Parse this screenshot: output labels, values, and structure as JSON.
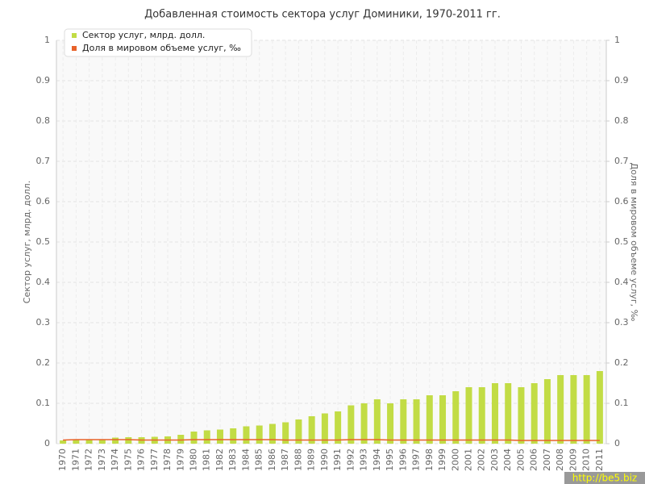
{
  "chart_data": {
    "type": "bar-line",
    "title": "Добавленная стоимость сектора услуг Доминики, 1970-2011 гг.",
    "y_label": "Сектор услуг, млрд. долл.",
    "y2_label": "Доля в мировом объеме услуг, ‰",
    "categories": [
      "1970",
      "1971",
      "1972",
      "1973",
      "1974",
      "1975",
      "1976",
      "1977",
      "1978",
      "1979",
      "1980",
      "1981",
      "1982",
      "1983",
      "1984",
      "1985",
      "1986",
      "1987",
      "1988",
      "1989",
      "1990",
      "1991",
      "1992",
      "1993",
      "1994",
      "1995",
      "1996",
      "1997",
      "1998",
      "1999",
      "2000",
      "2001",
      "2002",
      "2003",
      "2004",
      "2005",
      "2006",
      "2007",
      "2008",
      "2009",
      "2010",
      "2011"
    ],
    "series": [
      {
        "name": "Сектор услуг, млрд. долл.",
        "type": "bar",
        "color": "#c2dc45",
        "values": [
          0.008,
          0.01,
          0.01,
          0.01,
          0.015,
          0.016,
          0.016,
          0.017,
          0.018,
          0.022,
          0.03,
          0.033,
          0.035,
          0.038,
          0.043,
          0.045,
          0.049,
          0.053,
          0.06,
          0.068,
          0.075,
          0.08,
          0.095,
          0.1,
          0.11,
          0.1,
          0.11,
          0.11,
          0.12,
          0.12,
          0.13,
          0.14,
          0.14,
          0.15,
          0.15,
          0.14,
          0.15,
          0.16,
          0.17,
          0.17,
          0.17,
          0.18
        ]
      },
      {
        "name": "Доля в мировом объеме услуг, ‰",
        "type": "line",
        "axis": "y2",
        "color": "#e8622a",
        "values": [
          0.009,
          0.01,
          0.01,
          0.01,
          0.01,
          0.01,
          0.009,
          0.009,
          0.009,
          0.009,
          0.01,
          0.01,
          0.01,
          0.01,
          0.01,
          0.01,
          0.01,
          0.009,
          0.009,
          0.009,
          0.009,
          0.009,
          0.01,
          0.01,
          0.01,
          0.009,
          0.009,
          0.009,
          0.009,
          0.009,
          0.009,
          0.009,
          0.009,
          0.009,
          0.009,
          0.008,
          0.008,
          0.008,
          0.008,
          0.008,
          0.008,
          0.008
        ]
      }
    ],
    "ylim": [
      0,
      1
    ],
    "yticks": [
      0,
      0.1,
      0.2,
      0.3,
      0.4,
      0.5,
      0.6,
      0.7,
      0.8,
      0.9,
      1
    ],
    "y2lim": [
      0,
      1
    ],
    "y2ticks": [
      0,
      0.1,
      0.2,
      0.3,
      0.4,
      0.5,
      0.6,
      0.7,
      0.8,
      0.9,
      1
    ],
    "grid": true,
    "legend": "top-left",
    "watermark": "http://be5.biz"
  }
}
